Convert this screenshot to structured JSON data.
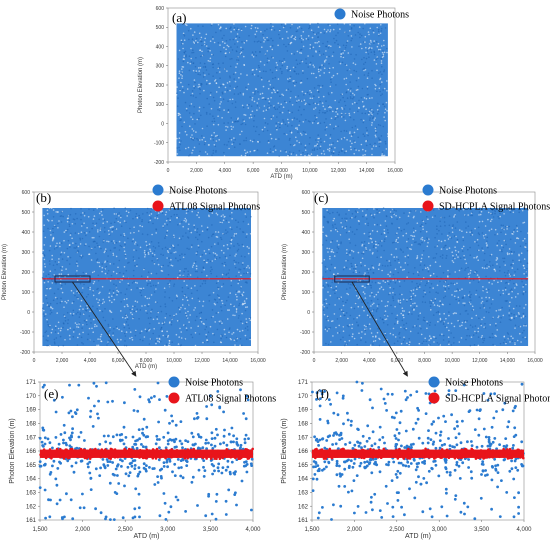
{
  "colors": {
    "noise": "#2b7bd0",
    "signal": "#e8141b",
    "box": "#1c2f5a",
    "arrow": "#222222"
  },
  "chart_data": [
    {
      "id": "a",
      "type": "scatter",
      "panel_label": "(a)",
      "xlabel": "ATD (m)",
      "ylabel": "Photon Elevation (m)",
      "xlim": [
        0,
        16000
      ],
      "ylim": [
        -200,
        600
      ],
      "x_ticks": [
        0,
        2000,
        4000,
        6000,
        8000,
        10000,
        12000,
        14000,
        16000
      ],
      "x_tick_labels": [
        "0",
        "2,000",
        "4,000",
        "6,000",
        "8,000",
        "10,000",
        "12,000",
        "14,000",
        "16,000"
      ],
      "y_ticks": [
        -200,
        -100,
        0,
        100,
        200,
        300,
        400,
        500,
        600
      ],
      "y_tick_labels": [
        "-200",
        "-100",
        "0",
        "100",
        "200",
        "300",
        "400",
        "500",
        "600"
      ],
      "legend": [
        {
          "name": "Noise Photons",
          "color": "#2b7bd0"
        }
      ],
      "noise_range": {
        "x": [
          600,
          15500
        ],
        "y": [
          -170,
          520
        ]
      },
      "signal": null,
      "highlight_box": null
    },
    {
      "id": "b",
      "type": "scatter",
      "panel_label": "(b)",
      "xlabel": "ATD (m)",
      "ylabel": "Photon Elevation (m)",
      "xlim": [
        0,
        16000
      ],
      "ylim": [
        -200,
        600
      ],
      "x_ticks": [
        0,
        2000,
        4000,
        6000,
        8000,
        10000,
        12000,
        14000,
        16000
      ],
      "x_tick_labels": [
        "0",
        "2,000",
        "4,000",
        "6,000",
        "8,000",
        "10,000",
        "12,000",
        "14,000",
        "16,000"
      ],
      "y_ticks": [
        -200,
        -100,
        0,
        100,
        200,
        300,
        400,
        500,
        600
      ],
      "y_tick_labels": [
        "-200",
        "-100",
        "0",
        "100",
        "200",
        "300",
        "400",
        "500",
        "600"
      ],
      "legend": [
        {
          "name": "Noise Photons",
          "color": "#2b7bd0"
        },
        {
          "name": "ATL08 Signal Photons",
          "color": "#e8141b"
        }
      ],
      "noise_range": {
        "x": [
          600,
          15500
        ],
        "y": [
          -170,
          520
        ]
      },
      "signal": {
        "x": [
          600,
          15500
        ],
        "y": 166,
        "spread": 1
      },
      "highlight_box": {
        "x": [
          1500,
          4000
        ],
        "y": [
          150,
          180
        ]
      }
    },
    {
      "id": "c",
      "type": "scatter",
      "panel_label": "(c)",
      "xlabel": "",
      "ylabel": "Photon Elevation (m)",
      "xlim": [
        0,
        16000
      ],
      "ylim": [
        -200,
        600
      ],
      "x_ticks": [
        0,
        2000,
        4000,
        6000,
        8000,
        10000,
        12000,
        14000,
        16000
      ],
      "x_tick_labels": [
        "0",
        "2,000",
        "4,000",
        "6,000",
        "8,000",
        "10,000",
        "12,000",
        "14,000",
        "16,000"
      ],
      "y_ticks": [
        -200,
        -100,
        0,
        100,
        200,
        300,
        400,
        500,
        600
      ],
      "y_tick_labels": [
        "-200",
        "-100",
        "0",
        "100",
        "200",
        "300",
        "400",
        "500",
        "600"
      ],
      "legend": [
        {
          "name": "Noise Photons",
          "color": "#2b7bd0"
        },
        {
          "name": "SD-HCPLA Signal Photons",
          "color": "#e8141b"
        }
      ],
      "noise_range": {
        "x": [
          600,
          15500
        ],
        "y": [
          -170,
          520
        ]
      },
      "signal": {
        "x": [
          600,
          15500
        ],
        "y": 166,
        "spread": 1
      },
      "highlight_box": {
        "x": [
          1500,
          4000
        ],
        "y": [
          150,
          180
        ]
      }
    },
    {
      "id": "e",
      "type": "scatter",
      "panel_label": "(e)",
      "xlabel": "ATD (m)",
      "ylabel": "Photon Elevation (m)",
      "xlim": [
        1500,
        4000
      ],
      "ylim": [
        161,
        171
      ],
      "x_ticks": [
        1500,
        2000,
        2500,
        3000,
        3500,
        4000
      ],
      "x_tick_labels": [
        "1,500",
        "2,000",
        "2,500",
        "3,000",
        "3,500",
        "4,000"
      ],
      "y_ticks": [
        161,
        162,
        163,
        164,
        165,
        166,
        167,
        168,
        169,
        170,
        171
      ],
      "y_tick_labels": [
        "161",
        "162",
        "163",
        "164",
        "165",
        "166",
        "167",
        "168",
        "169",
        "170",
        "171"
      ],
      "legend": [
        {
          "name": "Noise Photons",
          "color": "#2b7bd0"
        },
        {
          "name": "ATL08 Signal Photons",
          "color": "#e8141b"
        }
      ],
      "noise_range": {
        "x": [
          1500,
          4000
        ],
        "y": [
          161,
          171
        ]
      },
      "signal": {
        "x": [
          1500,
          4000
        ],
        "y": 165.8,
        "spread": 0.55
      },
      "highlight_box": null
    },
    {
      "id": "f",
      "type": "scatter",
      "panel_label": "(f)",
      "xlabel": "ATD (m)",
      "ylabel": "Photon Elevation (m)",
      "xlim": [
        1500,
        4000
      ],
      "ylim": [
        161,
        171
      ],
      "x_ticks": [
        1500,
        2000,
        2500,
        3000,
        3500,
        4000
      ],
      "x_tick_labels": [
        "1,500",
        "2,000",
        "2,500",
        "3,000",
        "3,500",
        "4,000"
      ],
      "y_ticks": [
        161,
        162,
        163,
        164,
        165,
        166,
        167,
        168,
        169,
        170,
        171
      ],
      "y_tick_labels": [
        "161",
        "162",
        "163",
        "164",
        "165",
        "166",
        "167",
        "168",
        "169",
        "170",
        "171"
      ],
      "legend": [
        {
          "name": "Noise Photons",
          "color": "#2b7bd0"
        },
        {
          "name": "SD-HCPLA Signal Photons",
          "color": "#e8141b"
        }
      ],
      "noise_range": {
        "x": [
          1500,
          4000
        ],
        "y": [
          161,
          171
        ]
      },
      "signal": {
        "x": [
          1500,
          4000
        ],
        "y": 165.8,
        "spread": 0.55
      },
      "highlight_box": null
    }
  ]
}
